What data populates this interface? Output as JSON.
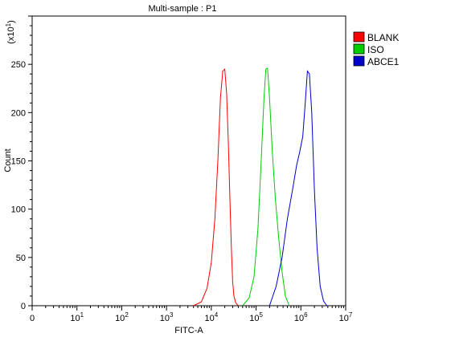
{
  "chart_data": {
    "type": "line",
    "title": "Multi-sample : P1",
    "xlabel": "FITC-A",
    "ylabel": "Count",
    "y_multiplier_base": "(x10",
    "y_multiplier_exp": "1",
    "y_multiplier_close": ")",
    "xscale": "log",
    "xlim": [
      0,
      10000000
    ],
    "ylim": [
      0,
      300
    ],
    "x_ticks": [
      {
        "value": 0,
        "base": "0",
        "exp": ""
      },
      {
        "value": 10,
        "base": "10",
        "exp": "1"
      },
      {
        "value": 100,
        "base": "10",
        "exp": "2"
      },
      {
        "value": 1000,
        "base": "10",
        "exp": "3"
      },
      {
        "value": 10000,
        "base": "10",
        "exp": "4"
      },
      {
        "value": 100000,
        "base": "10",
        "exp": "5"
      },
      {
        "value": 1000000,
        "base": "10",
        "exp": "6"
      },
      {
        "value": 10000000,
        "base": "10",
        "exp": "7"
      }
    ],
    "y_ticks": [
      0,
      50,
      100,
      150,
      200,
      250
    ],
    "legend_position": "top-right",
    "grid": false,
    "series": [
      {
        "name": "BLANK",
        "color": "#ff0000",
        "x": [
          4000,
          6000,
          8000,
          10000,
          12000,
          14000,
          16000,
          18000,
          20000,
          22000,
          24000,
          26000,
          28000,
          30000,
          32000,
          35000,
          40000
        ],
        "y": [
          0,
          4,
          18,
          45,
          90,
          150,
          215,
          243,
          245,
          220,
          170,
          110,
          60,
          25,
          10,
          3,
          0
        ]
      },
      {
        "name": "ISO",
        "color": "#00cc00",
        "x": [
          50000,
          70000,
          90000,
          110000,
          130000,
          150000,
          165000,
          180000,
          200000,
          230000,
          270000,
          320000,
          380000,
          450000,
          550000
        ],
        "y": [
          0,
          8,
          30,
          80,
          150,
          215,
          245,
          246,
          215,
          160,
          110,
          70,
          35,
          10,
          0
        ]
      },
      {
        "name": "ABCE1",
        "color": "#0000cc",
        "x": [
          200000,
          280000,
          380000,
          500000,
          650000,
          800000,
          950000,
          1100000,
          1250000,
          1400000,
          1550000,
          1750000,
          2000000,
          2300000,
          2700000,
          3200000,
          3800000
        ],
        "y": [
          0,
          20,
          50,
          90,
          120,
          145,
          160,
          175,
          210,
          243,
          240,
          200,
          120,
          60,
          20,
          5,
          0
        ]
      }
    ]
  }
}
